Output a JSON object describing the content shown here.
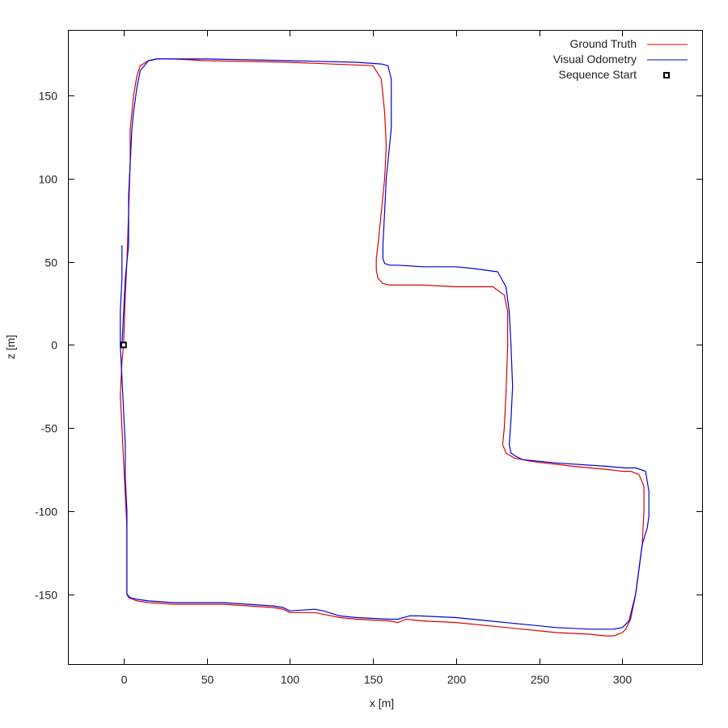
{
  "chart_data": {
    "type": "line",
    "xlabel": "x [m]",
    "ylabel": "z [m]",
    "xlim": [
      -33,
      348
    ],
    "ylim": [
      -192,
      189
    ],
    "xticks": [
      0,
      50,
      100,
      150,
      200,
      250,
      300
    ],
    "yticks": [
      150,
      100,
      50,
      0,
      -50,
      -100,
      -150
    ],
    "grid": false,
    "legend_position": "top-right",
    "legend": [
      "Ground Truth",
      "Visual Odometry",
      "Sequence Start"
    ],
    "colors": {
      "ground_truth": "#dd0000",
      "visual_odometry": "#0000dd",
      "start_marker": "#000000"
    },
    "series": [
      {
        "name": "Ground Truth",
        "x": [
          0,
          -1,
          -2,
          -1,
          0,
          1,
          2,
          2,
          2,
          2,
          3,
          8,
          15,
          30,
          60,
          90,
          96,
          100,
          115,
          120,
          130,
          140,
          160,
          165,
          170,
          180,
          200,
          220,
          240,
          250,
          260,
          280,
          290,
          295,
          300,
          302,
          305,
          308,
          312,
          313,
          313,
          310,
          305,
          302,
          300,
          292,
          270,
          245,
          235,
          230,
          228,
          229,
          230,
          231,
          231,
          229,
          222,
          200,
          180,
          160,
          156,
          153,
          152,
          152,
          153,
          155,
          157,
          158,
          157,
          155,
          150,
          100,
          50,
          30,
          20,
          15,
          10,
          8,
          6,
          5,
          4,
          4,
          4,
          3,
          2,
          1,
          0
        ],
        "y": [
          0,
          -10,
          -30,
          -50,
          -70,
          -90,
          -110,
          -130,
          -145,
          -150,
          -152,
          -154,
          -155,
          -156,
          -156,
          -158,
          -159,
          -161,
          -161,
          -162,
          -164,
          -165,
          -166,
          -167,
          -165,
          -166,
          -167,
          -169,
          -171,
          -172,
          -173,
          -174,
          -175,
          -175,
          -173,
          -171,
          -165,
          -150,
          -120,
          -100,
          -85,
          -78,
          -76,
          -76,
          -76,
          -75,
          -73,
          -70,
          -68,
          -65,
          -60,
          -50,
          -30,
          0,
          20,
          30,
          35,
          35,
          36,
          36,
          37,
          40,
          45,
          52,
          60,
          80,
          100,
          120,
          140,
          160,
          168,
          170,
          171,
          172,
          172,
          171,
          168,
          162,
          150,
          140,
          130,
          120,
          110,
          80,
          50,
          30,
          0
        ]
      },
      {
        "name": "Visual Odometry",
        "x": [
          -1,
          -1,
          -2,
          -2,
          -1,
          0,
          1,
          1,
          2,
          2,
          4,
          8,
          15,
          30,
          60,
          90,
          96,
          100,
          115,
          120,
          130,
          140,
          160,
          165,
          172,
          178,
          200,
          220,
          240,
          250,
          260,
          280,
          290,
          295,
          300,
          304,
          308,
          312,
          315,
          316,
          316,
          314,
          308,
          302,
          290,
          260,
          240,
          236,
          233,
          232,
          233,
          234,
          233,
          232,
          230,
          225,
          210,
          200,
          180,
          165,
          160,
          157,
          156,
          156,
          157,
          158,
          160,
          161,
          161,
          159,
          155,
          140,
          100,
          50,
          30,
          20,
          15,
          10,
          8,
          6,
          5,
          4,
          3,
          3,
          1,
          -1
        ],
        "y": [
          60,
          40,
          20,
          0,
          -20,
          -40,
          -60,
          -80,
          -100,
          -150,
          -152,
          -153,
          -154,
          -155,
          -155,
          -157,
          -158,
          -160,
          -159,
          -160,
          -163,
          -164,
          -165,
          -165,
          -163,
          -163,
          -164,
          -166,
          -168,
          -169,
          -170,
          -171,
          -171,
          -171,
          -170,
          -166,
          -150,
          -120,
          -110,
          -103,
          -88,
          -76,
          -74,
          -74,
          -73,
          -71,
          -69,
          -67,
          -65,
          -60,
          -45,
          -25,
          0,
          20,
          35,
          44,
          46,
          47,
          47,
          48,
          48,
          49,
          52,
          60,
          80,
          100,
          120,
          130,
          160,
          168,
          169,
          170,
          171,
          172,
          172,
          172,
          171,
          165,
          155,
          140,
          130,
          110,
          90,
          60,
          40,
          0
        ]
      }
    ],
    "markers": [
      {
        "name": "Sequence Start",
        "x": 0,
        "y": 0,
        "shape": "square"
      }
    ]
  }
}
